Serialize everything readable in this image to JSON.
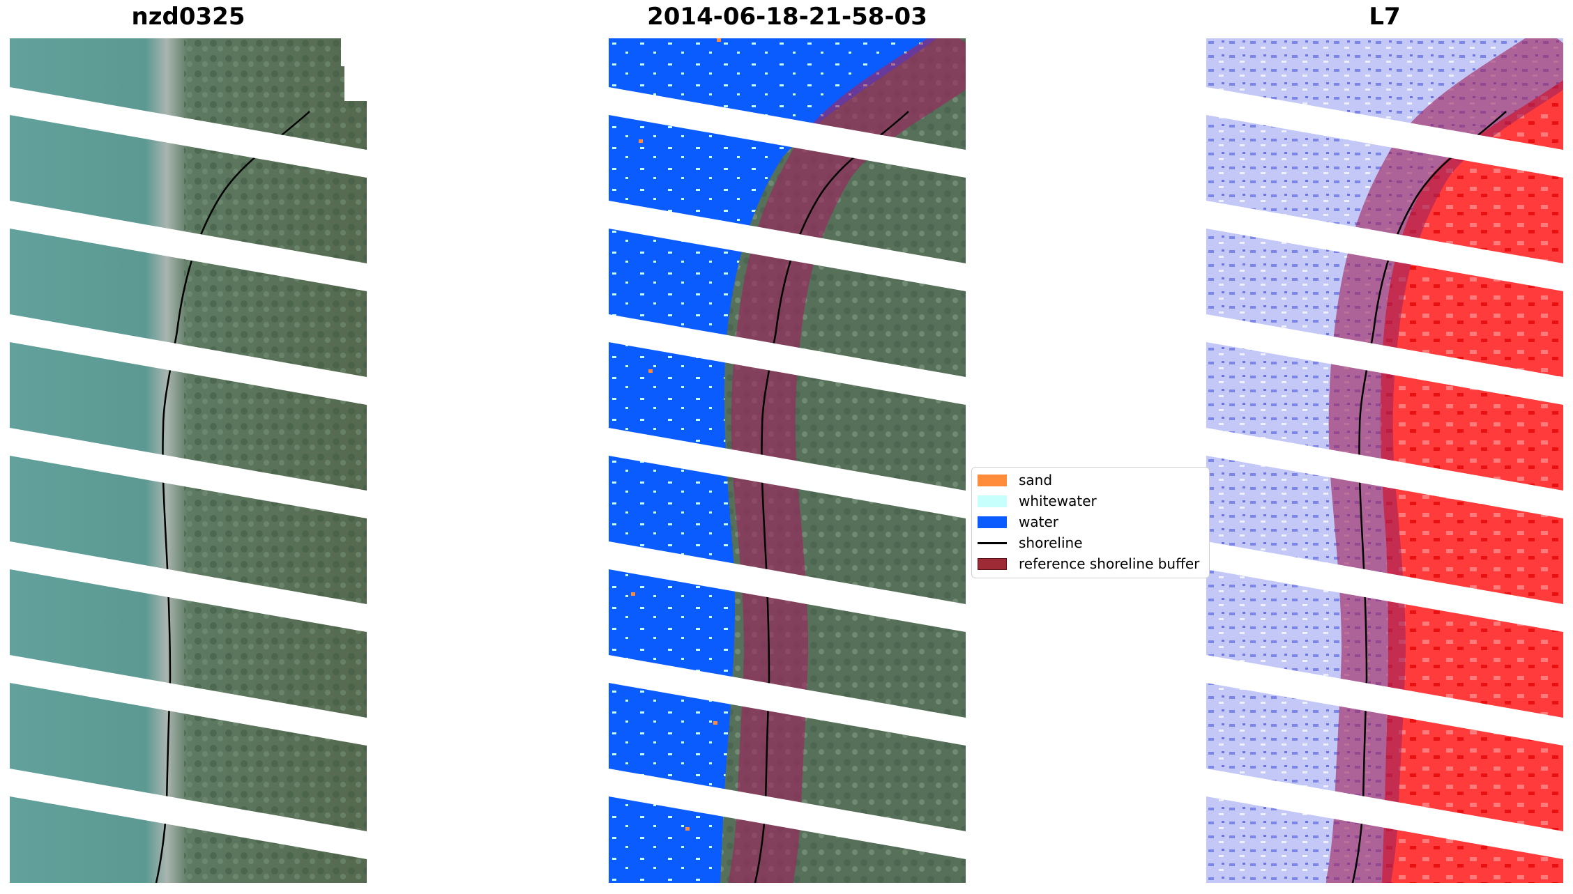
{
  "panels": [
    {
      "title": "nzd0325",
      "kind": "rgb"
    },
    {
      "title": "2014-06-18-21-58-03",
      "kind": "classified"
    },
    {
      "title": "L7",
      "kind": "index"
    }
  ],
  "legend": {
    "items": [
      {
        "label": "sand",
        "color": "#ff8c3a",
        "type": "patch"
      },
      {
        "label": "whitewater",
        "color": "#c6fffb",
        "type": "patch"
      },
      {
        "label": "water",
        "color": "#0a5cff",
        "type": "patch"
      },
      {
        "label": "shoreline",
        "color": "#000000",
        "type": "line"
      },
      {
        "label": "reference shoreline buffer",
        "color": "#9e2a35",
        "type": "patch"
      }
    ]
  },
  "colors": {
    "sea": "#5f9d98",
    "land": "#58705a",
    "water_class": "#0a5cff",
    "buffer_overlay": "#a0245e",
    "index_water": "#b8bdf5",
    "index_land": "#ff2a2a"
  }
}
